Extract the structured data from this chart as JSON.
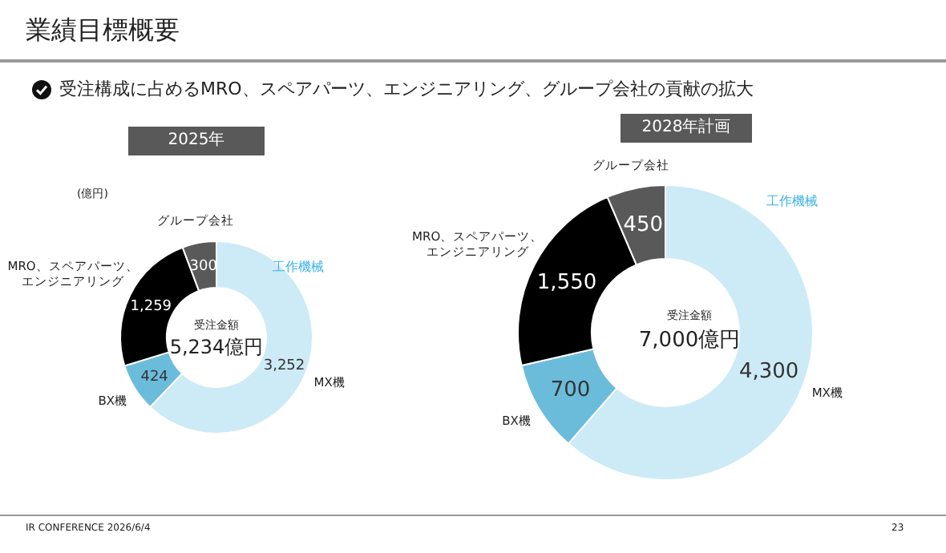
{
  "chart_data": [
    {
      "type": "donut",
      "title": "2025年",
      "categories": [
        "MX機",
        "BX機",
        "MRO、スペアパーツ、エンジニアリング",
        "グループ会社"
      ],
      "values": [
        3252,
        424,
        1259,
        300
      ],
      "value_labels": [
        "3,252",
        "424",
        "1,259",
        "300"
      ],
      "colors": [
        "#cdeaf7",
        "#6bbcdb",
        "#000000",
        "#595959"
      ],
      "annotations": [
        "業績目標概要",
        "受注構成に占めるMRO、スペアパーツ、エンジニアリング、グループ会社の貢献の拡大",
        "(億円)",
        "受注金額",
        "5,234億円",
        "工作機械"
      ]
    },
    {
      "type": "donut",
      "title": "2028年計画",
      "categories": [
        "MX機",
        "BX機",
        "MRO、スペアパーツ、エンジニアリング",
        "グループ会社"
      ],
      "values": [
        4300,
        700,
        1550,
        450
      ],
      "value_labels": [
        "4,300",
        "700",
        "1,550",
        "450"
      ],
      "colors": [
        "#cdeaf7",
        "#6bbcdb",
        "#000000",
        "#595959"
      ],
      "annotations": [
        "受注金額",
        "7,000億円",
        "工作機械",
        "IR CONFERENCE 2026/6/4",
        "23"
      ]
    }
  ]
}
